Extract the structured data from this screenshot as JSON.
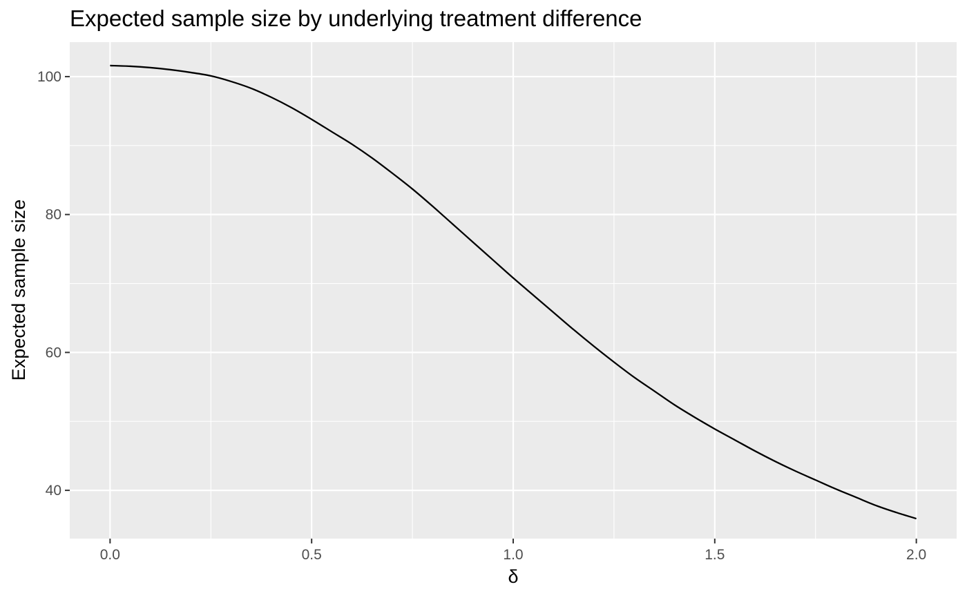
{
  "chart_data": {
    "type": "line",
    "title": "Expected sample size by underlying treatment difference",
    "xlabel": "δ",
    "ylabel": "Expected sample size",
    "xlim": [
      -0.1,
      2.1
    ],
    "ylim": [
      33,
      105
    ],
    "x_ticks": [
      0.0,
      0.5,
      1.0,
      1.5,
      2.0
    ],
    "x_tick_labels": [
      "0.0",
      "0.5",
      "1.0",
      "1.5",
      "2.0"
    ],
    "y_ticks": [
      40,
      60,
      80,
      100
    ],
    "y_tick_labels": [
      "40",
      "60",
      "80",
      "100"
    ],
    "grid": true,
    "line_color": "#000000",
    "panel_color": "#ebebeb",
    "series": [
      {
        "x": [
          0.0,
          0.05,
          0.1,
          0.15,
          0.2,
          0.25,
          0.3,
          0.35,
          0.4,
          0.45,
          0.5,
          0.55,
          0.6,
          0.65,
          0.7,
          0.75,
          0.8,
          0.85,
          0.9,
          0.95,
          1.0,
          1.05,
          1.1,
          1.15,
          1.2,
          1.25,
          1.3,
          1.35,
          1.4,
          1.45,
          1.5,
          1.55,
          1.6,
          1.65,
          1.7,
          1.75,
          1.8,
          1.85,
          1.9,
          1.95,
          2.0
        ],
        "values": [
          101.6,
          101.5,
          101.3,
          101.0,
          100.6,
          100.1,
          99.3,
          98.3,
          97.0,
          95.5,
          93.8,
          92.0,
          90.2,
          88.2,
          86.0,
          83.7,
          81.2,
          78.6,
          76.0,
          73.4,
          70.8,
          68.3,
          65.8,
          63.3,
          60.9,
          58.6,
          56.4,
          54.4,
          52.4,
          50.6,
          48.9,
          47.3,
          45.7,
          44.2,
          42.8,
          41.5,
          40.2,
          39.0,
          37.8,
          36.8,
          35.9
        ]
      }
    ]
  }
}
